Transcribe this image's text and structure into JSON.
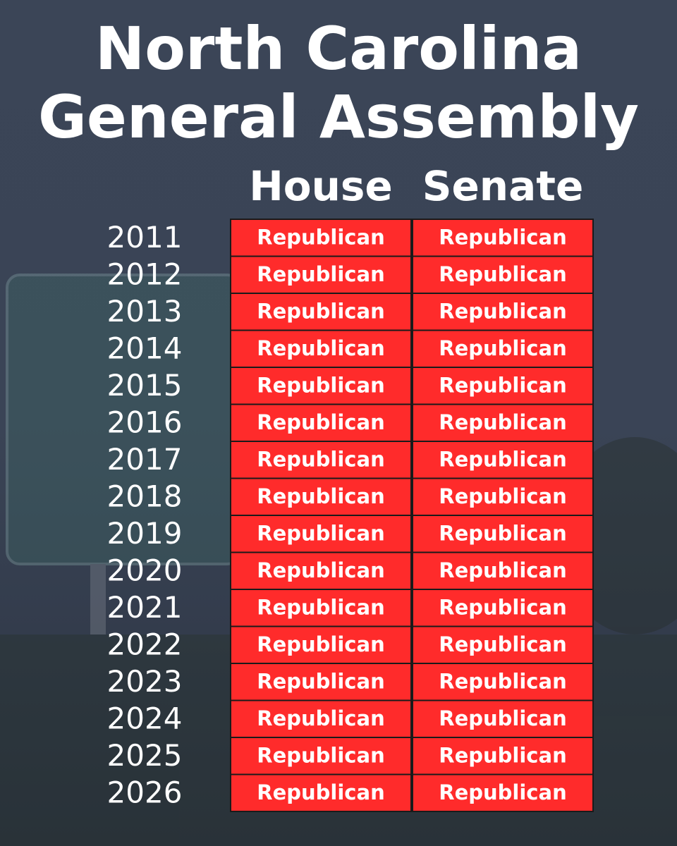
{
  "title": [
    "North Carolina",
    "General Assembly"
  ],
  "table": {
    "columns": [
      "House",
      "Senate"
    ],
    "rows": [
      [
        "2011",
        "Republican",
        "Republican"
      ],
      [
        "2012",
        "Republican",
        "Republican"
      ],
      [
        "2013",
        "Republican",
        "Republican"
      ],
      [
        "2014",
        "Republican",
        "Republican"
      ],
      [
        "2015",
        "Republican",
        "Republican"
      ],
      [
        "2016",
        "Republican",
        "Republican"
      ],
      [
        "2017",
        "Republican",
        "Republican"
      ],
      [
        "2018",
        "Republican",
        "Republican"
      ],
      [
        "2019",
        "Republican",
        "Republican"
      ],
      [
        "2020",
        "Republican",
        "Republican"
      ],
      [
        "2021",
        "Republican",
        "Republican"
      ],
      [
        "2022",
        "Republican",
        "Republican"
      ],
      [
        "2023",
        "Republican",
        "Republican"
      ],
      [
        "2024",
        "Republican",
        "Republican"
      ],
      [
        "2025",
        "Republican",
        "Republican"
      ],
      [
        "2026",
        "Republican",
        "Republican"
      ]
    ]
  }
}
